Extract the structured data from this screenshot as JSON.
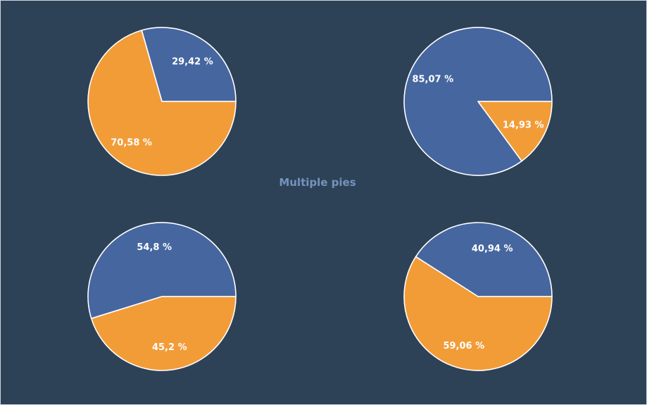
{
  "colors": {
    "background": "#2d4257",
    "series_a": "#4666a0",
    "series_b": "#f29c38",
    "title": "#7493bd",
    "slice_border": "#ffffff",
    "label": "#ffffff"
  },
  "chart_data": {
    "type": "pie",
    "title": "Multiple pies",
    "pies": [
      {
        "slices": [
          {
            "value": 29.42,
            "label": "29,42 %",
            "color_key": "series_a"
          },
          {
            "value": 70.58,
            "label": "70,58 %",
            "color_key": "series_b"
          }
        ]
      },
      {
        "slices": [
          {
            "value": 85.07,
            "label": "85,07 %",
            "color_key": "series_a"
          },
          {
            "value": 14.93,
            "label": "14,93 %",
            "color_key": "series_b"
          }
        ]
      },
      {
        "slices": [
          {
            "value": 54.8,
            "label": "54,8 %",
            "color_key": "series_a"
          },
          {
            "value": 45.2,
            "label": "45,2 %",
            "color_key": "series_b"
          }
        ]
      },
      {
        "slices": [
          {
            "value": 40.94,
            "label": "40,94 %",
            "color_key": "series_a"
          },
          {
            "value": 59.06,
            "label": "59,06 %",
            "color_key": "series_b"
          }
        ]
      }
    ]
  }
}
